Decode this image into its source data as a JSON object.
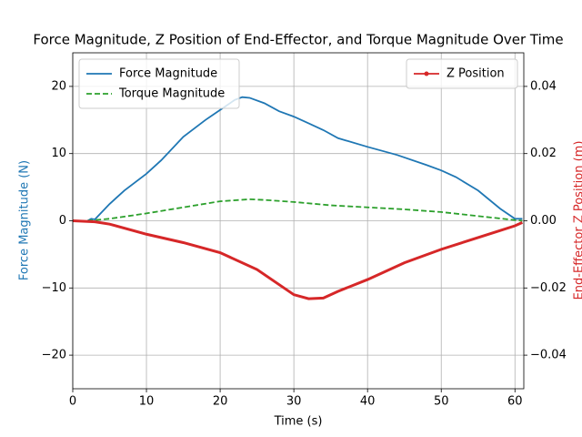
{
  "chart_data": {
    "type": "line",
    "title": "Force Magnitude, Z Position of End-Effector, and Torque Magnitude Over Time",
    "xlabel": "Time (s)",
    "ylabel": "Force Magnitude (N)",
    "y2label": "End-Effector Z Position (m)",
    "xlim": [
      0,
      61.2
    ],
    "ylim": [
      -25,
      25
    ],
    "y2lim": [
      -0.05,
      0.05
    ],
    "xticks": [
      0,
      10,
      20,
      30,
      40,
      50,
      60
    ],
    "yticks": [
      {
        "value": -20,
        "label": "−20"
      },
      {
        "value": -10,
        "label": "−10"
      },
      0,
      10,
      20
    ],
    "y2ticks": [
      {
        "value": -0.04,
        "label": "−0.04"
      },
      {
        "value": -0.02,
        "label": "−0.02"
      },
      {
        "value": 0,
        "label": "0.00"
      },
      0.02,
      0.04
    ],
    "grid": true,
    "legend": "upper left",
    "legend2": "upper right",
    "ylabel_color": "#1f77b4",
    "y2label_color": "#d62728",
    "series": [
      {
        "name": "Force Magnitude",
        "color": "#1f77b4",
        "linestyle": "solid",
        "x": [
          2,
          2.5,
          3,
          5,
          7,
          10,
          12,
          15,
          18,
          20,
          22,
          23,
          24,
          26,
          28,
          30,
          32,
          34,
          36,
          40,
          44,
          48,
          50,
          52,
          55,
          58,
          60,
          61
        ],
        "values": [
          0,
          0.3,
          0.2,
          2.5,
          4.5,
          7,
          9,
          12.5,
          15,
          16.5,
          18,
          18.4,
          18.3,
          17.5,
          16.3,
          15.5,
          14.5,
          13.5,
          12.3,
          11,
          9.8,
          8.3,
          7.5,
          6.5,
          4.5,
          1.8,
          0.3,
          0.3
        ]
      },
      {
        "name": "Torque Magnitude",
        "color": "#2ca02c",
        "linestyle": "dashed",
        "x": [
          2,
          5,
          10,
          15,
          20,
          24,
          26,
          30,
          35,
          40,
          45,
          50,
          55,
          60,
          61
        ],
        "values": [
          0,
          0.3,
          1.1,
          2,
          2.9,
          3.2,
          3.1,
          2.8,
          2.3,
          2,
          1.7,
          1.3,
          0.7,
          0.1,
          0
        ]
      },
      {
        "name": "Z Position",
        "color": "#d62728",
        "linestyle": "solid",
        "marker": "o",
        "axis": "y2",
        "x": [
          0,
          3,
          5,
          10,
          15,
          20,
          25,
          30,
          32,
          34,
          36,
          40,
          45,
          50,
          55,
          60,
          61
        ],
        "values": [
          0,
          -0.0003,
          -0.001,
          -0.004,
          -0.0065,
          -0.0095,
          -0.0145,
          -0.022,
          -0.0232,
          -0.023,
          -0.021,
          -0.0175,
          -0.0125,
          -0.0085,
          -0.005,
          -0.0015,
          -0.0005
        ]
      }
    ]
  }
}
